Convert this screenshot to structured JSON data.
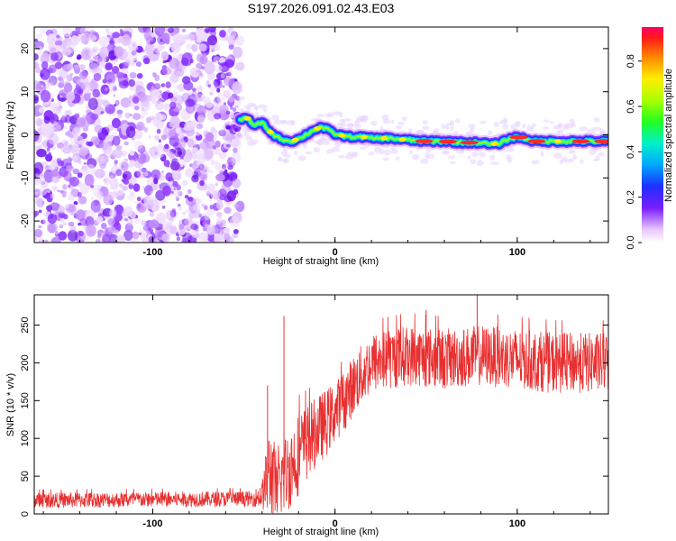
{
  "title": "S197.2026.091.02.43.E03",
  "chart_data": [
    {
      "type": "heatmap",
      "panel": "spectrogram",
      "xlabel": "Height of straight line (km)",
      "ylabel": "Frequency (Hz)",
      "xlim": [
        -165,
        150
      ],
      "ylim": [
        -25,
        25
      ],
      "xticks": [
        -100,
        0,
        100
      ],
      "yticks": [
        -20,
        -10,
        0,
        10,
        20
      ],
      "xtick_labels": [
        "-100",
        "0",
        "100"
      ],
      "ytick_labels": [
        "-20",
        "-10",
        "0",
        "10",
        "20"
      ],
      "noise_region_x": [
        -165,
        -52
      ],
      "signal_trace": {
        "x": [
          -52,
          -48,
          -44,
          -40,
          -36,
          -32,
          -28,
          -24,
          -20,
          -16,
          -12,
          -8,
          -4,
          0,
          5,
          10,
          15,
          20,
          30,
          40,
          50,
          60,
          70,
          80,
          85,
          90,
          95,
          100,
          105,
          110,
          120,
          130,
          140,
          150
        ],
        "y": [
          3.5,
          3.8,
          2.0,
          3.0,
          0.8,
          -0.5,
          -1.2,
          -1.5,
          -1.0,
          0.0,
          1.0,
          1.8,
          1.2,
          0.2,
          -0.3,
          -0.5,
          -0.5,
          -0.8,
          -0.8,
          -1.2,
          -1.5,
          -1.5,
          -1.8,
          -1.8,
          -2.2,
          -2.0,
          -1.0,
          -0.5,
          -1.0,
          -1.5,
          -1.5,
          -1.5,
          -1.5,
          -1.5
        ]
      },
      "colorbar": {
        "label": "Normalized spectral amplitude",
        "range": [
          0.0,
          0.95
        ],
        "ticks": [
          0.0,
          0.2,
          0.4,
          0.6,
          0.8
        ],
        "tick_labels": [
          "0.0",
          "0.2",
          "0.4",
          "0.6",
          "0.8"
        ]
      }
    },
    {
      "type": "line",
      "panel": "snr",
      "xlabel": "Height of straight line (km)",
      "ylabel": "SNR (10 * v/v)",
      "xlim": [
        -165,
        150
      ],
      "ylim": [
        0,
        290
      ],
      "xticks": [
        -100,
        0,
        100
      ],
      "yticks": [
        0,
        50,
        100,
        150,
        200,
        250
      ],
      "xtick_labels": [
        "-100",
        "0",
        "100"
      ],
      "ytick_labels": [
        "0",
        "50",
        "100",
        "150",
        "200",
        "250"
      ],
      "color": "#e83030",
      "envelope": {
        "x": [
          -165,
          -45,
          -40,
          -38,
          -36,
          -30,
          -25,
          -20,
          -15,
          -10,
          -5,
          0,
          5,
          10,
          15,
          20,
          30,
          40,
          60,
          80,
          100,
          120,
          150
        ],
        "mean": [
          18,
          20,
          25,
          40,
          55,
          45,
          60,
          80,
          95,
          110,
          120,
          135,
          150,
          170,
          185,
          200,
          205,
          210,
          205,
          210,
          205,
          200,
          200
        ],
        "spread": [
          10,
          10,
          18,
          40,
          60,
          50,
          55,
          55,
          50,
          45,
          45,
          40,
          40,
          40,
          40,
          40,
          40,
          40,
          40,
          40,
          40,
          40,
          40
        ]
      },
      "peaks": [
        {
          "x": -37,
          "y": 170
        },
        {
          "x": -28,
          "y": 262
        },
        {
          "x": 78,
          "y": 290
        },
        {
          "x": 50,
          "y": 270
        }
      ]
    }
  ]
}
